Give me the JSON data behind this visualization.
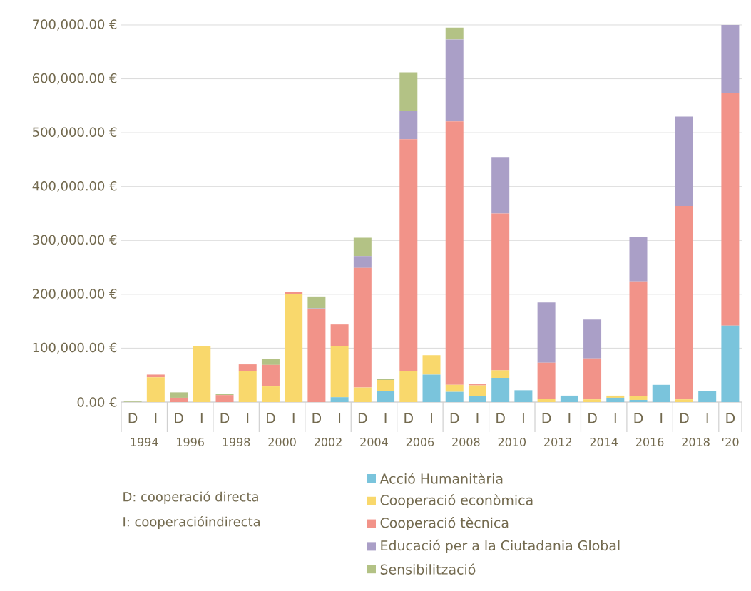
{
  "chart_data": {
    "type": "bar",
    "stacked": true,
    "categories": [
      "D",
      "I",
      "D",
      "I",
      "D",
      "I",
      "D",
      "I",
      "D",
      "I",
      "D",
      "I",
      "D",
      "I",
      "D",
      "I",
      "D",
      "I",
      "D",
      "I",
      "D",
      "I",
      "D",
      "I",
      "D",
      "I",
      "D"
    ],
    "series": [
      {
        "name": "Acció Humanitària",
        "color": "#7ac4dc",
        "values": [
          0,
          0,
          0,
          0,
          0,
          0,
          0,
          0,
          0,
          9000,
          0,
          20000,
          0,
          51000,
          19000,
          11000,
          45000,
          22000,
          0,
          12000,
          0,
          8000,
          4000,
          32000,
          0,
          20000,
          142000
        ]
      },
      {
        "name": "Cooperació econòmica",
        "color": "#f9d86c",
        "values": [
          0,
          46000,
          0,
          104000,
          0,
          58000,
          29000,
          201000,
          0,
          95000,
          27000,
          21000,
          58000,
          36000,
          13000,
          20000,
          14000,
          0,
          6000,
          0,
          5000,
          4000,
          7000,
          0,
          5000,
          0,
          0
        ]
      },
      {
        "name": "Cooperació tècnica",
        "color": "#f29389",
        "values": [
          0,
          5000,
          8000,
          0,
          13000,
          12000,
          40000,
          3000,
          172000,
          40000,
          222000,
          0,
          430000,
          0,
          489000,
          2000,
          291000,
          0,
          67000,
          0,
          76000,
          0,
          213000,
          0,
          359000,
          0,
          432000
        ]
      },
      {
        "name": "Educació per a la Ciutadania Global",
        "color": "#aa9fc7",
        "values": [
          0,
          0,
          0,
          0,
          0,
          0,
          0,
          0,
          2000,
          0,
          22000,
          0,
          52000,
          0,
          152000,
          0,
          105000,
          0,
          112000,
          0,
          72000,
          0,
          82000,
          0,
          166000,
          0,
          126000
        ]
      },
      {
        "name": "Sensibilització",
        "color": "#b3c285",
        "values": [
          1000,
          0,
          10000,
          0,
          2000,
          0,
          11000,
          0,
          22000,
          0,
          34000,
          2000,
          72000,
          0,
          22000,
          0,
          0,
          0,
          0,
          0,
          0,
          0,
          0,
          0,
          0,
          0,
          0
        ]
      }
    ],
    "ylim": [
      0,
      700000
    ],
    "yticks": [
      {
        "value": 0,
        "label": "0.00 €"
      },
      {
        "value": 100000,
        "label": "100,000.00 €"
      },
      {
        "value": 200000,
        "label": "200,000.00 €"
      },
      {
        "value": 300000,
        "label": "300,000.00 €"
      },
      {
        "value": 400000,
        "label": "400,000.00 €"
      },
      {
        "value": 500000,
        "label": "500,000.00 €"
      },
      {
        "value": 600000,
        "label": "600,000.00 €"
      },
      {
        "value": 700000,
        "label": "700,000.00 €"
      }
    ],
    "grid": "y",
    "legend": "bottom",
    "annotations": [
      "1994",
      "1996",
      "1998",
      "2000",
      "2002",
      "2004",
      "2006",
      "2008",
      "2010",
      "2012",
      "2014",
      "2016",
      "2018",
      "‘20",
      "D: cooperació directa",
      "I: cooperacióindirecta"
    ]
  }
}
